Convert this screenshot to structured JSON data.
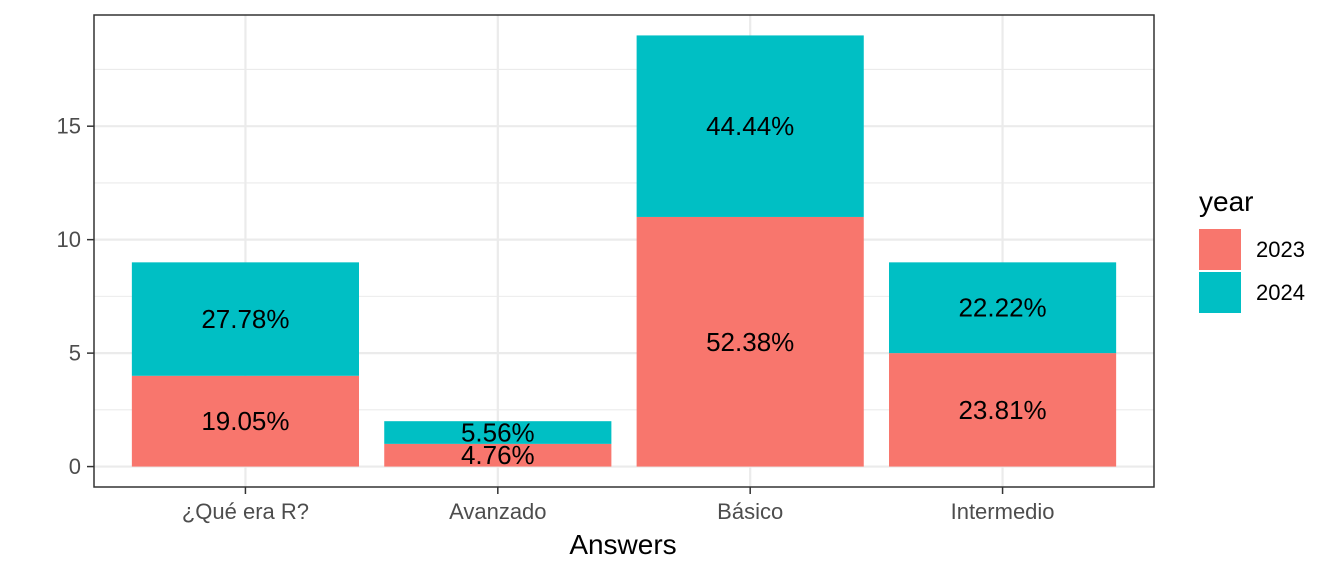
{
  "chart_data": {
    "type": "bar",
    "stacked": true,
    "categories": [
      "¿Qué era R?",
      "Avanzado",
      "Básico",
      "Intermedio"
    ],
    "xlabel": "Answers",
    "ylabel": "",
    "ylim": [
      -0.9,
      19.9
    ],
    "yticks": [
      0,
      5,
      10,
      15
    ],
    "grid": true,
    "legend": {
      "title": "year",
      "position": "right"
    },
    "series": [
      {
        "name": "2023",
        "color": "#F8766D",
        "values": [
          4,
          1,
          11,
          5
        ],
        "labels": [
          "19.05%",
          "4.76%",
          "52.38%",
          "23.81%"
        ]
      },
      {
        "name": "2024",
        "color": "#00BFC4",
        "values": [
          5,
          1,
          8,
          4
        ],
        "labels": [
          "27.78%",
          "5.56%",
          "44.44%",
          "22.22%"
        ]
      }
    ]
  }
}
